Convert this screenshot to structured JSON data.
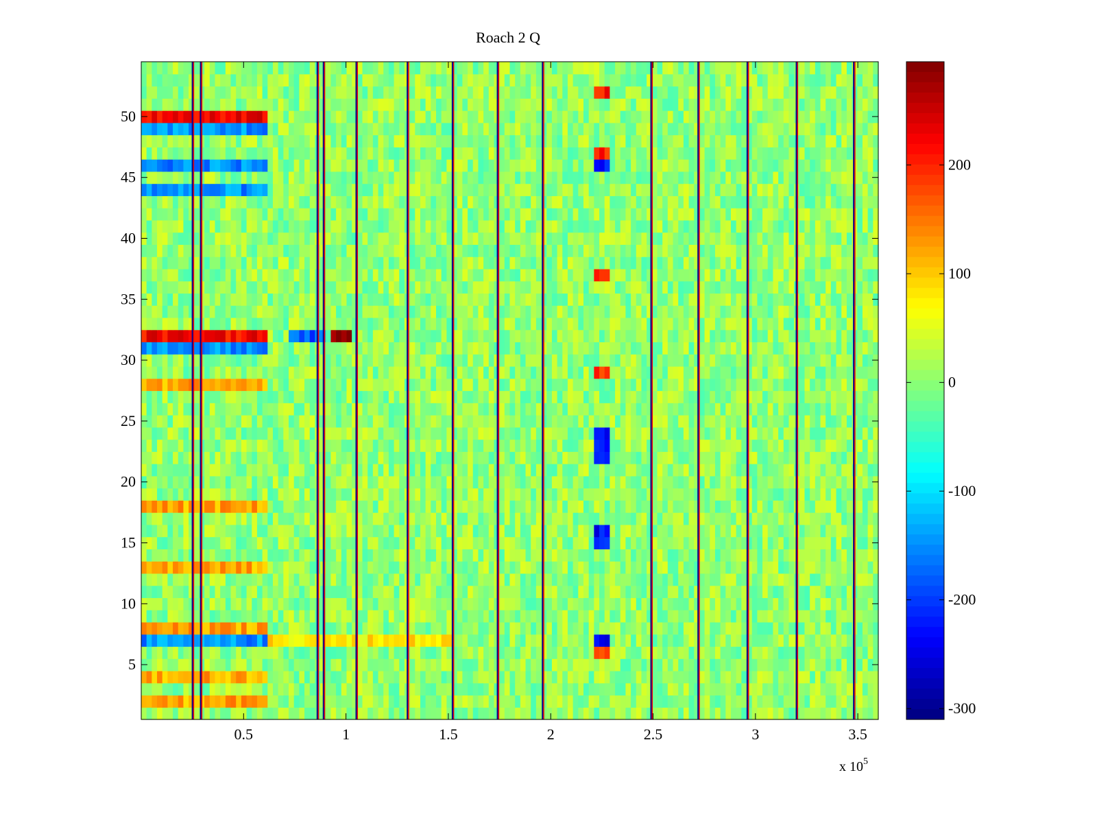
{
  "chart_data": {
    "type": "heatmap",
    "title": "Roach 2 Q",
    "xlabel": "",
    "ylabel": "",
    "x_exponent_label": "x 10",
    "x_exponent_power": "5",
    "xlim": [
      0,
      360000
    ],
    "ylim": [
      0.5,
      54.5
    ],
    "xticks": [
      0.5,
      1,
      1.5,
      2,
      2.5,
      3,
      3.5
    ],
    "xtick_labels": [
      "0.5",
      "1",
      "1.5",
      "2",
      "2.5",
      "3",
      "3.5"
    ],
    "yticks": [
      5,
      10,
      15,
      20,
      25,
      30,
      35,
      40,
      45,
      50
    ],
    "ytick_labels": [
      "5",
      "10",
      "15",
      "20",
      "25",
      "30",
      "35",
      "40",
      "45",
      "50"
    ],
    "rows": 54,
    "colormap": "jet",
    "clim": [
      -310,
      295
    ],
    "colorbar": {
      "ticks": [
        200,
        100,
        0,
        -100,
        -200,
        -300
      ],
      "tick_labels": [
        "200",
        "100",
        "0",
        "-100",
        "-200",
        "-300"
      ]
    },
    "background_value": 0,
    "vertical_stripe_x": [
      25000,
      29000,
      86000,
      89000,
      105000,
      130000,
      152000,
      174000,
      196000,
      249000,
      272000,
      296000,
      320000,
      348000
    ],
    "row_features": [
      {
        "rows": [
          2,
          18,
          28,
          13,
          8,
          4
        ],
        "x_range": [
          0,
          62000
        ],
        "value": 120
      },
      {
        "rows": [
          7,
          31,
          44,
          46,
          49
        ],
        "x_range": [
          0,
          62000
        ],
        "value": -150
      },
      {
        "rows": [
          32,
          50
        ],
        "x_range": [
          0,
          62000
        ],
        "value": 220
      },
      {
        "rows": [
          32
        ],
        "x_range": [
          92000,
          102000
        ],
        "value": 280
      },
      {
        "rows": [
          32
        ],
        "x_range": [
          72000,
          90000
        ],
        "value": -180
      },
      {
        "rows": [
          7
        ],
        "x_range": [
          62000,
          152000
        ],
        "value": 80
      },
      {
        "rows": [
          22,
          23,
          24,
          15,
          16,
          7,
          46
        ],
        "x_range": [
          222000,
          228000
        ],
        "value": -230
      },
      {
        "rows": [
          6,
          29,
          37,
          47,
          52
        ],
        "x_range": [
          222000,
          228000
        ],
        "value": 200
      }
    ]
  }
}
